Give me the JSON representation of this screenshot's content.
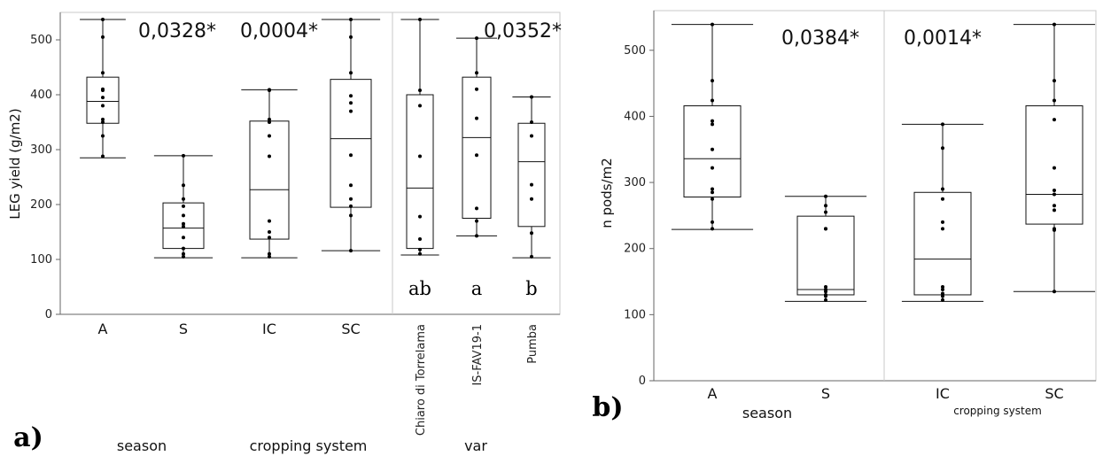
{
  "chart_data": [
    {
      "type": "box",
      "panel_label": "a)",
      "ylabel": "LEG yield (g/m2)",
      "ylim": [
        0,
        550
      ],
      "yticks": [
        0,
        100,
        200,
        300,
        400,
        500
      ],
      "groups": [
        {
          "label": "season",
          "categories": [
            "A",
            "S"
          ],
          "p_value": "0,0328*"
        },
        {
          "label": "cropping system",
          "categories": [
            "IC",
            "SC"
          ],
          "p_value": "0,0004*"
        },
        {
          "label": "var",
          "categories": [
            "Chiaro di Torrelama",
            "IS-FAV19-1",
            "Pumba"
          ],
          "p_value": "0,0352*"
        }
      ],
      "boxes": [
        {
          "category": "A",
          "min": 285,
          "q1": 348,
          "median": 388,
          "q3": 432,
          "max": 537,
          "points": [
            537,
            505,
            440,
            410,
            408,
            395,
            380,
            355,
            350,
            325,
            288
          ]
        },
        {
          "category": "S",
          "min": 103,
          "q1": 120,
          "median": 157,
          "q3": 203,
          "max": 289,
          "points": [
            289,
            235,
            210,
            197,
            180,
            165,
            160,
            140,
            120,
            110,
            105
          ]
        },
        {
          "category": "IC",
          "min": 103,
          "q1": 137,
          "median": 227,
          "q3": 352,
          "max": 409,
          "points": [
            409,
            408,
            355,
            350,
            325,
            288,
            170,
            150,
            140,
            110,
            105
          ]
        },
        {
          "category": "SC",
          "min": 116,
          "q1": 195,
          "median": 320,
          "q3": 428,
          "max": 537,
          "points": [
            537,
            505,
            440,
            398,
            385,
            370,
            290,
            235,
            210,
            197,
            180,
            116
          ]
        },
        {
          "category": "Chiaro di Torrelama",
          "min": 108,
          "q1": 120,
          "median": 230,
          "q3": 400,
          "max": 537,
          "points": [
            537,
            408,
            380,
            288,
            178,
            137,
            118,
            110
          ]
        },
        {
          "category": "IS-FAV19-1",
          "min": 143,
          "q1": 175,
          "median": 322,
          "q3": 432,
          "max": 503,
          "points": [
            503,
            440,
            410,
            357,
            290,
            193,
            170,
            143
          ]
        },
        {
          "category": "Pumba",
          "min": 103,
          "q1": 160,
          "median": 278,
          "q3": 348,
          "max": 396,
          "points": [
            396,
            350,
            325,
            236,
            210,
            148,
            105
          ]
        }
      ],
      "letters": [
        "ab",
        "a",
        "b"
      ]
    },
    {
      "type": "box",
      "panel_label": "b)",
      "ylabel": "n pods/m2",
      "ylim": [
        0,
        560
      ],
      "yticks": [
        0,
        100,
        200,
        300,
        400,
        500
      ],
      "groups": [
        {
          "label": "season",
          "categories": [
            "A",
            "S"
          ],
          "p_value": "0,0384*"
        },
        {
          "label": "cropping system",
          "categories": [
            "IC",
            "SC"
          ],
          "p_value": "0,0014*"
        }
      ],
      "boxes": [
        {
          "category": "A",
          "min": 229,
          "q1": 278,
          "median": 336,
          "q3": 416,
          "max": 539,
          "points": [
            539,
            454,
            424,
            393,
            388,
            350,
            322,
            290,
            285,
            275,
            240,
            230
          ]
        },
        {
          "category": "S",
          "min": 120,
          "q1": 130,
          "median": 138,
          "q3": 249,
          "max": 279,
          "points": [
            279,
            265,
            255,
            230,
            230,
            142,
            138,
            135,
            130,
            128,
            122
          ]
        },
        {
          "category": "IC",
          "min": 120,
          "q1": 130,
          "median": 184,
          "q3": 285,
          "max": 388,
          "points": [
            388,
            352,
            290,
            275,
            240,
            230,
            142,
            138,
            132,
            128,
            122
          ]
        },
        {
          "category": "SC",
          "min": 135,
          "q1": 237,
          "median": 282,
          "q3": 416,
          "max": 539,
          "points": [
            539,
            454,
            424,
            395,
            322,
            288,
            282,
            265,
            258,
            230,
            228,
            135
          ]
        }
      ]
    }
  ]
}
